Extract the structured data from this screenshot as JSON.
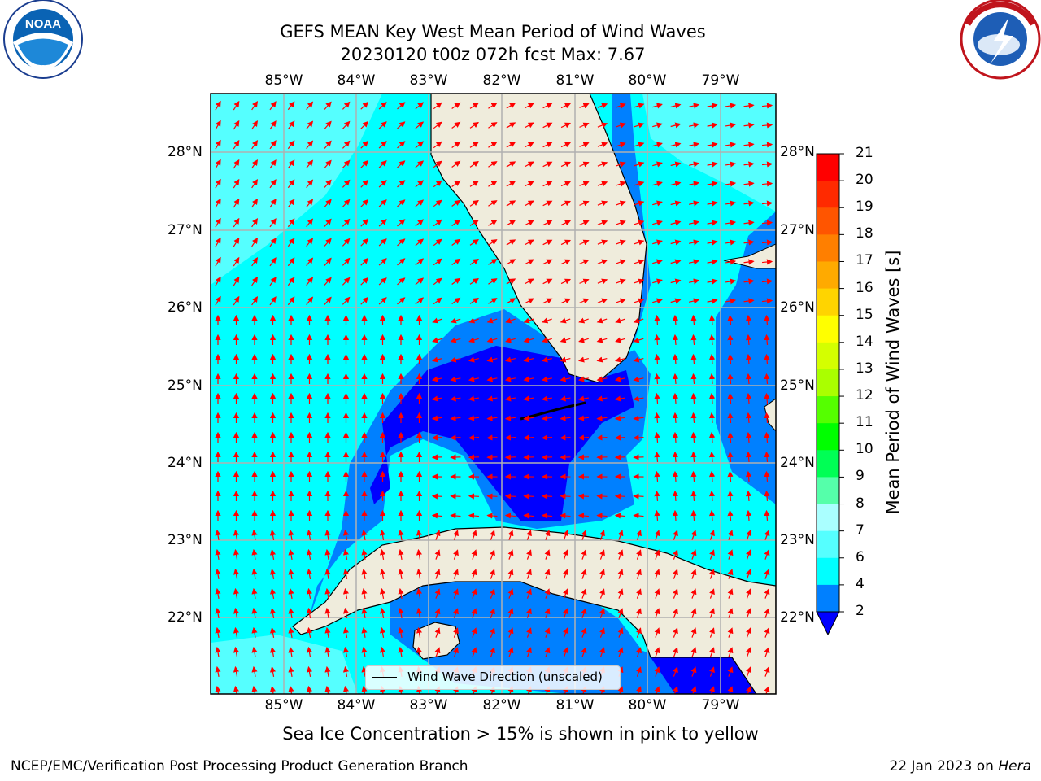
{
  "title": {
    "line1": "GEFS MEAN Key West Mean Period of Wind Waves",
    "line2": "20230120 t00z 072h fcst   Max: 7.67"
  },
  "logos": {
    "left": "noaa-logo",
    "right": "national-weather-service-logo",
    "left_text": "NOAA",
    "right_text": "NATIONAL WEATHER SERVICE"
  },
  "map": {
    "longitude_labels": [
      "85°W",
      "84°W",
      "83°W",
      "82°W",
      "81°W",
      "80°W",
      "79°W"
    ],
    "latitude_labels": [
      "28°N",
      "27°N",
      "26°N",
      "25°N",
      "24°N",
      "23°N",
      "22°N"
    ],
    "extent": {
      "lon": [
        -86.0,
        -78.3
      ],
      "lat": [
        21.0,
        28.7
      ]
    },
    "gridlines": true,
    "colors": {
      "land": "#efecdc",
      "ocean_4_6": "#00ffff",
      "ocean_2_4": "#0080ff",
      "ocean_lt2": "#0000ff",
      "arrows": "#ff0000"
    }
  },
  "colorbar": {
    "label": "Mean Period of Wind Waves [s]",
    "ticks": [
      "21",
      "20",
      "19",
      "18",
      "17",
      "16",
      "15",
      "14",
      "13",
      "12",
      "11",
      "10",
      "9",
      "8",
      "7",
      "6",
      "4",
      "2"
    ],
    "colors": [
      "#ff0000",
      "#ff2a00",
      "#ff5500",
      "#ff7f00",
      "#ffaa00",
      "#ffd400",
      "#ffff00",
      "#d4ff00",
      "#aaff00",
      "#55ff00",
      "#00ff00",
      "#00ff55",
      "#55ffaa",
      "#aaffff",
      "#55ffff",
      "#00ffff",
      "#0080ff"
    ],
    "under_color": "#0000ff"
  },
  "legend": {
    "label": "Wind Wave Direction (unscaled)"
  },
  "note": "Sea Ice Concentration > 15% is shown in pink to yellow",
  "footer": {
    "left": "NCEP/EMC/Verification Post Processing Product Generation Branch",
    "right_prefix": "22 Jan 2023 on ",
    "right_host": "Hera"
  }
}
